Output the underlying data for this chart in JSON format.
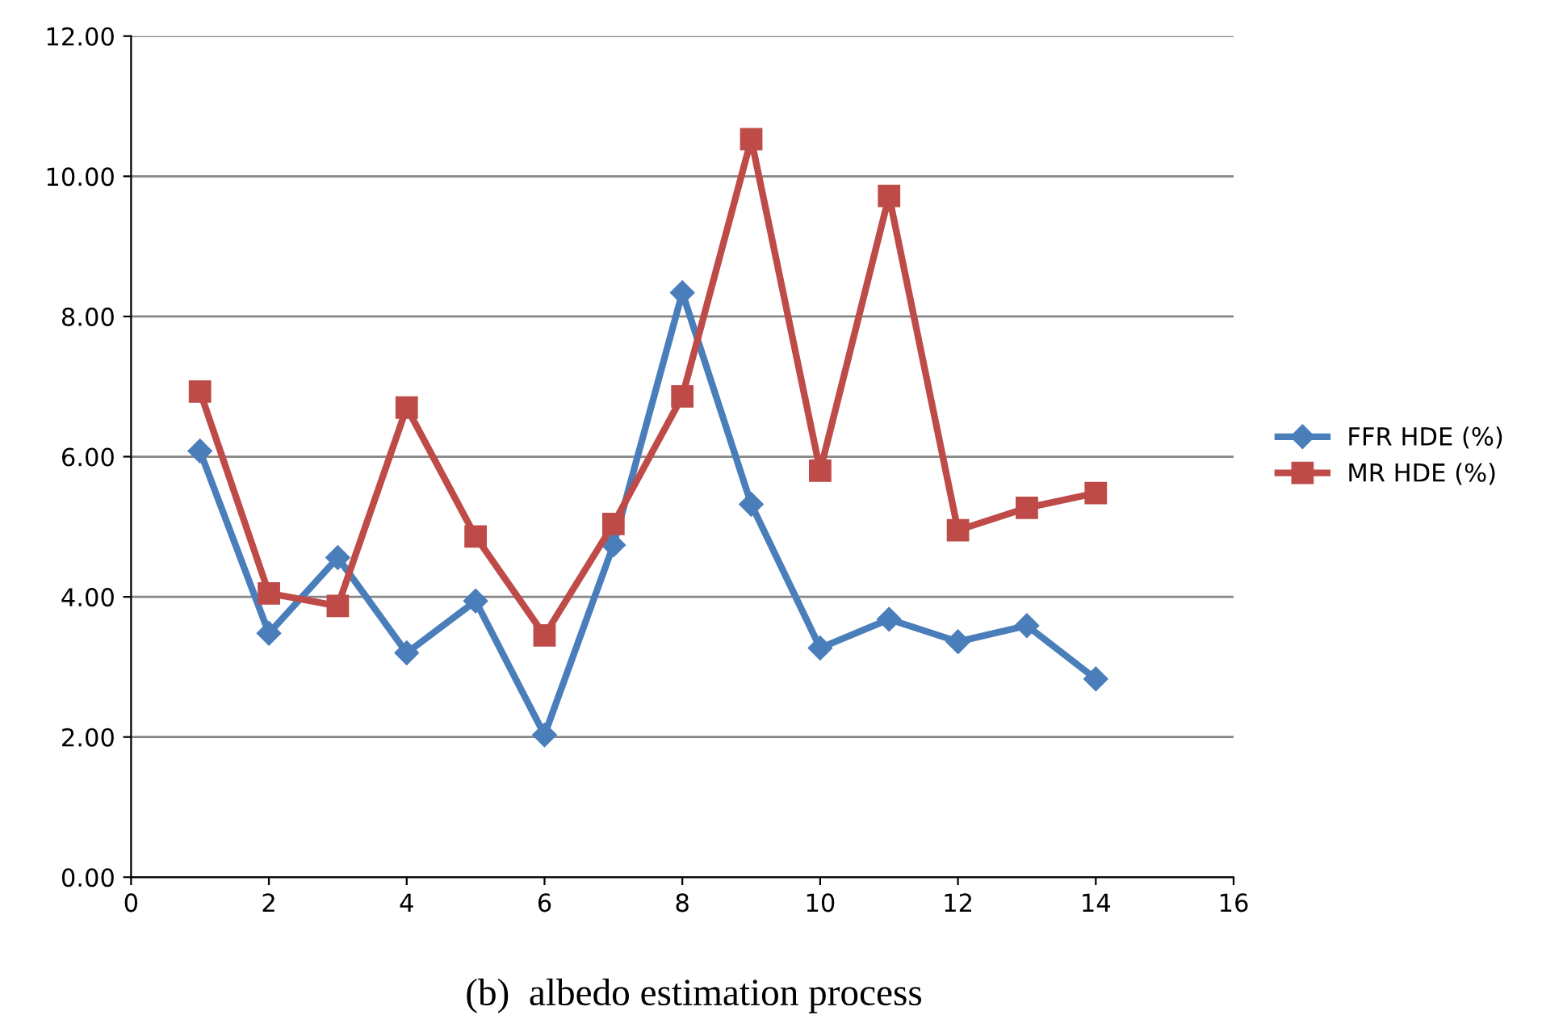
{
  "chart_data": {
    "type": "line",
    "x": [
      1,
      2,
      3,
      4,
      5,
      6,
      7,
      8,
      9,
      10,
      11,
      12,
      13,
      14
    ],
    "series": [
      {
        "name": "FFR HDE (%)",
        "color": "#4a7ebb",
        "marker": "diamond",
        "values": [
          6.08,
          3.48,
          4.56,
          3.2,
          3.94,
          2.03,
          4.74,
          8.34,
          5.32,
          3.27,
          3.68,
          3.36,
          3.59,
          2.83
        ]
      },
      {
        "name": "MR HDE (%)",
        "color": "#be4b48",
        "marker": "square",
        "values": [
          6.93,
          4.05,
          3.87,
          6.7,
          4.86,
          3.45,
          5.04,
          6.86,
          10.53,
          5.8,
          9.72,
          4.95,
          5.27,
          5.48
        ]
      }
    ],
    "xlim": [
      0,
      16
    ],
    "xticks": [
      0,
      2,
      4,
      6,
      8,
      10,
      12,
      14,
      16
    ],
    "ylim": [
      0,
      12
    ],
    "yticks": [
      {
        "value": 0,
        "label": "0.00"
      },
      {
        "value": 2,
        "label": "2.00"
      },
      {
        "value": 4,
        "label": "4.00"
      },
      {
        "value": 6,
        "label": "6.00"
      },
      {
        "value": 8,
        "label": "8.00"
      },
      {
        "value": 10,
        "label": "10.00"
      },
      {
        "value": 12,
        "label": "12.00"
      }
    ],
    "grid": "y",
    "legend": "right",
    "annotations": [
      "(b)  albedo estimation process"
    ]
  }
}
